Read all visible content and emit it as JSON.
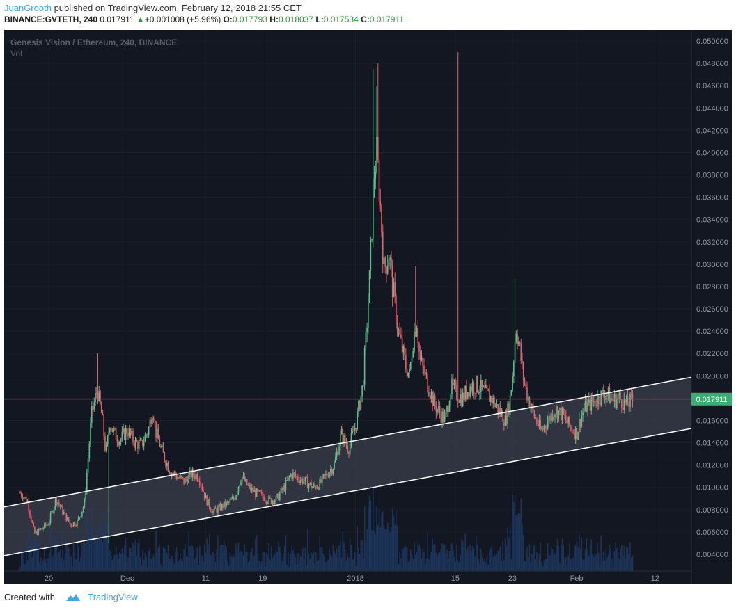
{
  "header": {
    "author": "JuanGrooth",
    "published_text": "published on TradingView.com, February 12, 2018 21:55 CET",
    "symbol": "BINANCE:GVTETH, 240",
    "last": "0.017911",
    "change_arrow": "▲",
    "change": "+0.001008 (+5.96%)",
    "o_label": "O:",
    "o_value": "0.017793",
    "h_label": "H:",
    "h_value": "0.018037",
    "l_label": "L:",
    "l_value": "0.017534",
    "c_label": "C:",
    "c_value": "0.017911"
  },
  "legend": {
    "title": "Genesis Vision / Ethereum, 240, BINANCE",
    "vol": "Vol"
  },
  "price_label": "0.017911",
  "footer": {
    "created_with": "Created with",
    "brand": "TradingView",
    "logo_icon": "tradingview-cloud-icon"
  },
  "colors": {
    "background": "#131722",
    "up": "#5fbf8f",
    "down": "#e8616a",
    "channel_line": "#ffffff",
    "price_line": "#3a8f6a",
    "price_label_bg": "#3cae72",
    "volume": "#1f3b66"
  },
  "chart_data": {
    "type": "candlestick",
    "title": "Genesis Vision / Ethereum, 240, BINANCE",
    "ylim": [
      0.0025,
      0.051
    ],
    "y_ticks": [
      "0.004000",
      "0.006000",
      "0.008000",
      "0.010000",
      "0.012000",
      "0.014000",
      "0.016000",
      "0.018000",
      "0.020000",
      "0.022000",
      "0.024000",
      "0.026000",
      "0.028000",
      "0.030000",
      "0.032000",
      "0.034000",
      "0.036000",
      "0.038000",
      "0.040000",
      "0.042000",
      "0.044000",
      "0.046000",
      "0.048000",
      "0.050000"
    ],
    "x_ticks": [
      {
        "label": "20",
        "t": 17
      },
      {
        "label": "Dec",
        "t": 28
      },
      {
        "label": "11",
        "t": 39
      },
      {
        "label": "19",
        "t": 47
      },
      {
        "label": "2018",
        "t": 60
      },
      {
        "label": "15",
        "t": 74
      },
      {
        "label": "23",
        "t": 82
      },
      {
        "label": "Feb",
        "t": 91
      },
      {
        "label": "12",
        "t": 102
      }
    ],
    "t_range": [
      10.75,
      107.1
    ],
    "close_key_points": [
      [
        13,
        0.0095
      ],
      [
        14,
        0.0088
      ],
      [
        15,
        0.0058
      ],
      [
        16,
        0.0063
      ],
      [
        17,
        0.0068
      ],
      [
        18,
        0.009
      ],
      [
        19,
        0.0078
      ],
      [
        20,
        0.0067
      ],
      [
        21,
        0.0069
      ],
      [
        22,
        0.0085
      ],
      [
        23,
        0.0165
      ],
      [
        23.8,
        0.0188
      ],
      [
        24.5,
        0.0162
      ],
      [
        25,
        0.013
      ],
      [
        25.6,
        0.016
      ],
      [
        26,
        0.015
      ],
      [
        27,
        0.0142
      ],
      [
        28,
        0.0152
      ],
      [
        29,
        0.014
      ],
      [
        30,
        0.0138
      ],
      [
        31,
        0.0152
      ],
      [
        31.6,
        0.0172
      ],
      [
        32,
        0.015
      ],
      [
        33,
        0.013
      ],
      [
        34,
        0.0115
      ],
      [
        35,
        0.011
      ],
      [
        36,
        0.0105
      ],
      [
        37,
        0.0112
      ],
      [
        38,
        0.011
      ],
      [
        39,
        0.009
      ],
      [
        40,
        0.0078
      ],
      [
        41,
        0.0082
      ],
      [
        42,
        0.0085
      ],
      [
        43,
        0.009
      ],
      [
        44,
        0.011
      ],
      [
        45,
        0.01
      ],
      [
        46,
        0.0095
      ],
      [
        47,
        0.0092
      ],
      [
        48,
        0.0088
      ],
      [
        49,
        0.009
      ],
      [
        50,
        0.01
      ],
      [
        51,
        0.0112
      ],
      [
        52,
        0.0108
      ],
      [
        53,
        0.0105
      ],
      [
        54,
        0.01
      ],
      [
        55,
        0.0103
      ],
      [
        56,
        0.0112
      ],
      [
        57,
        0.012
      ],
      [
        58,
        0.0148
      ],
      [
        59,
        0.0135
      ],
      [
        60,
        0.0155
      ],
      [
        61,
        0.019
      ],
      [
        61.5,
        0.0235
      ],
      [
        62,
        0.029
      ],
      [
        62.6,
        0.038
      ],
      [
        63,
        0.04
      ],
      [
        63.6,
        0.034
      ],
      [
        64,
        0.0295
      ],
      [
        64.7,
        0.031
      ],
      [
        65.2,
        0.028
      ],
      [
        66,
        0.024
      ],
      [
        67,
        0.021
      ],
      [
        67.6,
        0.02
      ],
      [
        68,
        0.023
      ],
      [
        68.6,
        0.025
      ],
      [
        69,
        0.0215
      ],
      [
        70,
        0.0195
      ],
      [
        71,
        0.0175
      ],
      [
        72,
        0.0165
      ],
      [
        72.6,
        0.016
      ],
      [
        73,
        0.0175
      ],
      [
        73.4,
        0.019
      ],
      [
        74,
        0.0185
      ],
      [
        75,
        0.018
      ],
      [
        76,
        0.019
      ],
      [
        77,
        0.0192
      ],
      [
        78,
        0.0185
      ],
      [
        79,
        0.018
      ],
      [
        80,
        0.017
      ],
      [
        80.6,
        0.0165
      ],
      [
        81,
        0.016
      ],
      [
        81.6,
        0.0175
      ],
      [
        82,
        0.02
      ],
      [
        82.5,
        0.0245
      ],
      [
        83,
        0.0225
      ],
      [
        83.5,
        0.02
      ],
      [
        84,
        0.0185
      ],
      [
        84.5,
        0.0175
      ],
      [
        85,
        0.0165
      ],
      [
        86,
        0.015
      ],
      [
        87,
        0.016
      ],
      [
        88,
        0.017
      ],
      [
        89,
        0.0165
      ],
      [
        90,
        0.0155
      ],
      [
        91,
        0.0148
      ],
      [
        91.6,
        0.0163
      ],
      [
        92,
        0.017
      ],
      [
        93,
        0.0175
      ],
      [
        94,
        0.018
      ],
      [
        95,
        0.0185
      ],
      [
        96,
        0.0178
      ],
      [
        97,
        0.018
      ],
      [
        98,
        0.0174
      ],
      [
        99,
        0.0179
      ]
    ],
    "channel": {
      "upper": {
        "t1": 10.75,
        "p1": 0.00825,
        "t2": 107.1,
        "p2": 0.01988
      },
      "lower": {
        "t1": 10.75,
        "p1": 0.00388,
        "t2": 107.1,
        "p2": 0.01528
      }
    },
    "current_price": 0.017911
  }
}
